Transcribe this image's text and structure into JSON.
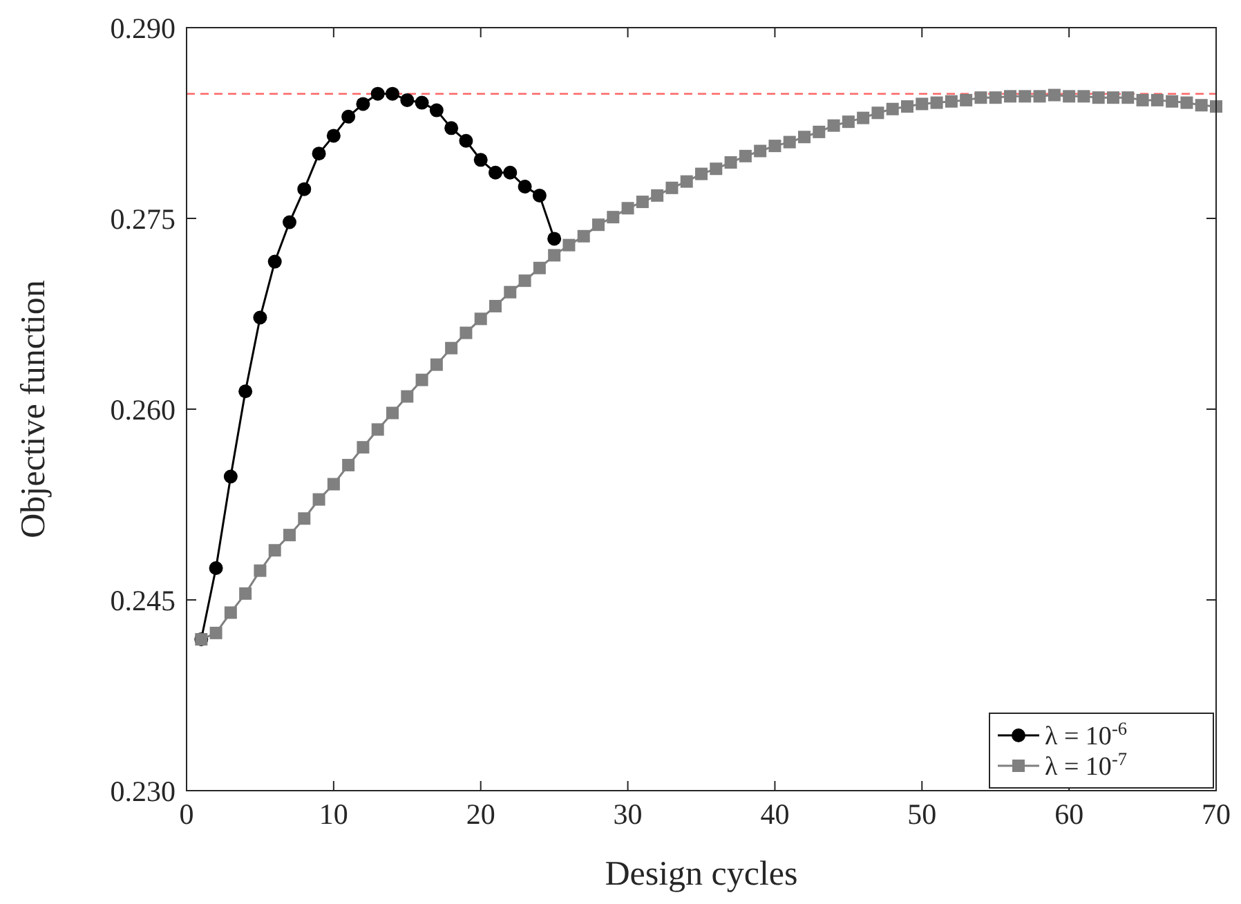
{
  "chart_data": {
    "type": "line",
    "xlabel": "Design cycles",
    "ylabel": "Objective function",
    "xlim": [
      0,
      70
    ],
    "xticks": [
      0,
      10,
      20,
      30,
      40,
      50,
      60,
      70
    ],
    "ylim": [
      0.23,
      0.29
    ],
    "yticks": [
      {
        "value": 0.23,
        "label": "0.230"
      },
      {
        "value": 0.245,
        "label": "0.245"
      },
      {
        "value": 0.26,
        "label": "0.260"
      },
      {
        "value": 0.275,
        "label": "0.275"
      },
      {
        "value": 0.29,
        "label": "0.290"
      }
    ],
    "grid": false,
    "legend": "bottom right",
    "line_style": "solid",
    "ref_lines": [
      {
        "axis": "y",
        "value": 0.2848,
        "color": "#ff6666",
        "line_style": "dashed"
      }
    ],
    "series": [
      {
        "name": "λ = 10$^{-6}$",
        "color": "#000000",
        "marker": "circle",
        "x": [
          1,
          2,
          3,
          4,
          5,
          6,
          7,
          8,
          9,
          10,
          11,
          12,
          13,
          14,
          15,
          16,
          17,
          18,
          19,
          20,
          21,
          22,
          23,
          24,
          25
        ],
        "values": [
          0.2419,
          0.2475,
          0.2547,
          0.2614,
          0.2672,
          0.2716,
          0.2747,
          0.2773,
          0.2801,
          0.2815,
          0.283,
          0.284,
          0.2848,
          0.2848,
          0.2843,
          0.2841,
          0.2835,
          0.2821,
          0.2811,
          0.2796,
          0.2786,
          0.2786,
          0.2775,
          0.2768,
          0.2734
        ]
      },
      {
        "name": "λ = 10$^{-7}$",
        "color": "#808080",
        "marker": "square",
        "x": [
          1,
          2,
          3,
          4,
          5,
          6,
          7,
          8,
          9,
          10,
          11,
          12,
          13,
          14,
          15,
          16,
          17,
          18,
          19,
          20,
          21,
          22,
          23,
          24,
          25,
          26,
          27,
          28,
          29,
          30,
          31,
          32,
          33,
          34,
          35,
          36,
          37,
          38,
          39,
          40,
          41,
          42,
          43,
          44,
          45,
          46,
          47,
          48,
          49,
          50,
          51,
          52,
          53,
          54,
          55,
          56,
          57,
          58,
          59,
          60,
          61,
          62,
          63,
          64,
          65,
          66,
          67,
          68,
          69,
          70
        ],
        "values": [
          0.2419,
          0.2424,
          0.244,
          0.2455,
          0.2473,
          0.2489,
          0.2501,
          0.2514,
          0.2529,
          0.2541,
          0.2556,
          0.257,
          0.2584,
          0.2597,
          0.261,
          0.2623,
          0.2635,
          0.2648,
          0.266,
          0.2671,
          0.2681,
          0.2692,
          0.2701,
          0.2711,
          0.2721,
          0.2729,
          0.2736,
          0.2745,
          0.2751,
          0.2758,
          0.2763,
          0.2768,
          0.2774,
          0.2779,
          0.2785,
          0.2789,
          0.2794,
          0.2799,
          0.2803,
          0.2807,
          0.281,
          0.2814,
          0.2818,
          0.2823,
          0.2826,
          0.2829,
          0.2833,
          0.2836,
          0.2838,
          0.284,
          0.2841,
          0.2842,
          0.2843,
          0.2845,
          0.2845,
          0.2846,
          0.2846,
          0.2846,
          0.2847,
          0.2846,
          0.2846,
          0.2845,
          0.2845,
          0.2845,
          0.2843,
          0.2843,
          0.2842,
          0.2841,
          0.2839,
          0.2838
        ]
      }
    ]
  }
}
